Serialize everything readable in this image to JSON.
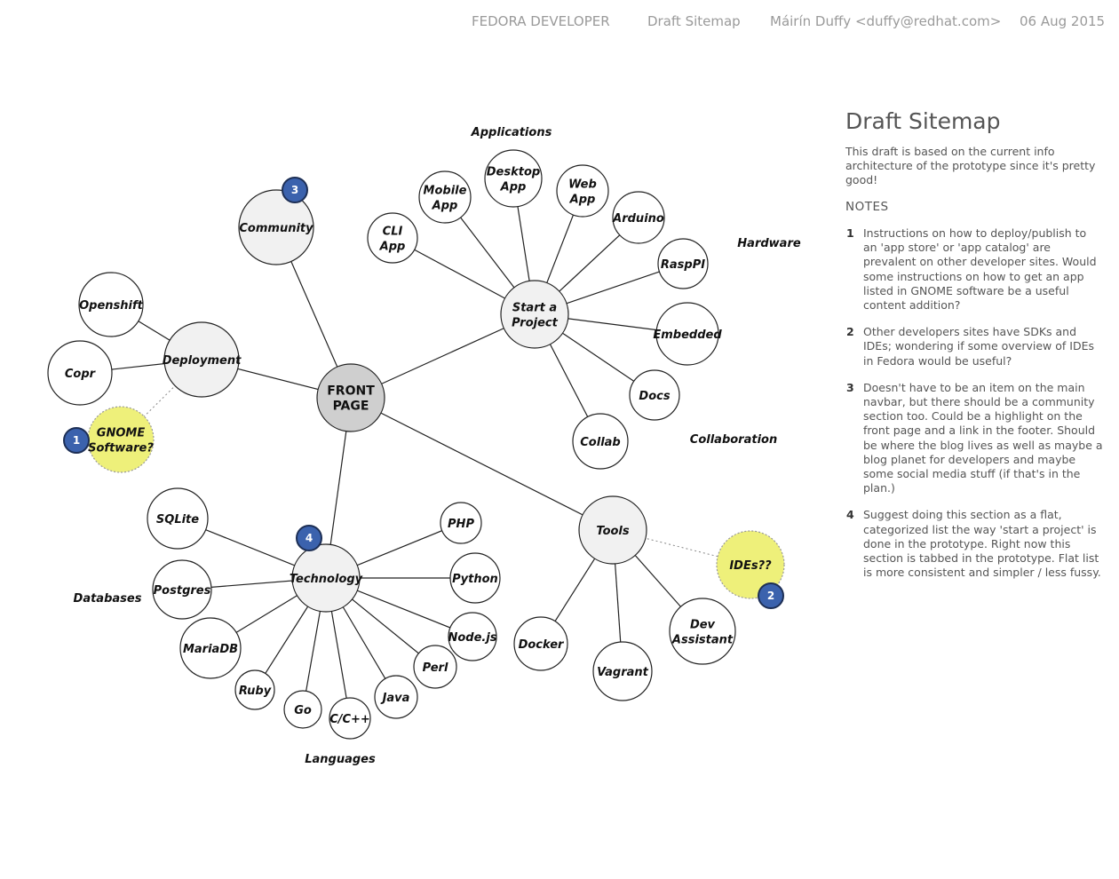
{
  "header": {
    "project": "FEDORA DEVELOPER",
    "doc": "Draft Sitemap",
    "author": "Máirín Duffy <duffy@redhat.com>",
    "date": "06 Aug 2015"
  },
  "sidebar": {
    "title": "Draft Sitemap",
    "intro": "This draft is based on the current info architecture of the prototype since it's pretty good!",
    "notes_heading": "NOTES",
    "notes": [
      {
        "num": "1",
        "text": "Instructions on how to deploy/publish to an 'app store' or 'app catalog' are prevalent on other developer sites. Would some instructions on how to get an app listed in GNOME software be a useful content addition?"
      },
      {
        "num": "2",
        "text": "Other developers sites have SDKs and IDEs; wondering if some overview of IDEs in Fedora would be useful?"
      },
      {
        "num": "3",
        "text": "Doesn't have to be an item on the main navbar, but there should be a community section too. Could be a highlight on the front page and a link in the footer. Should be where the blog lives as well as maybe a blog planet for developers and maybe some social media stuff (if that's in the plan.)"
      },
      {
        "num": "4",
        "text": "Suggest doing this section as a flat, categorized list the way 'start a project' is done in the prototype. Right now this section is tabbed in the prototype. Flat list is more consistent and simpler / less fussy."
      }
    ]
  },
  "diagram": {
    "colors": {
      "root": "#cfcfcf",
      "section": "#f1f1f1",
      "leaf": "#ffffff",
      "suggestion": "#eef07a",
      "badge": "#3b62ad",
      "line": "#222222"
    },
    "nodes": [
      {
        "id": "front",
        "label": "FRONT\nPAGE",
        "kind": "root"
      },
      {
        "id": "community",
        "label": "Community",
        "kind": "section"
      },
      {
        "id": "deployment",
        "label": "Deployment",
        "kind": "section"
      },
      {
        "id": "project",
        "label": "Start a\nProject",
        "kind": "section"
      },
      {
        "id": "technology",
        "label": "Technology",
        "kind": "section"
      },
      {
        "id": "tools",
        "label": "Tools",
        "kind": "section"
      },
      {
        "id": "openshift",
        "label": "Openshift",
        "kind": "leaf"
      },
      {
        "id": "copr",
        "label": "Copr",
        "kind": "leaf"
      },
      {
        "id": "gnome",
        "label": "GNOME\nSoftware?",
        "kind": "suggestion"
      },
      {
        "id": "cli",
        "label": "CLI\nApp",
        "kind": "leaf"
      },
      {
        "id": "mobile",
        "label": "Mobile\nApp",
        "kind": "leaf"
      },
      {
        "id": "desktop",
        "label": "Desktop\nApp",
        "kind": "leaf"
      },
      {
        "id": "web",
        "label": "Web\nApp",
        "kind": "leaf"
      },
      {
        "id": "arduino",
        "label": "Arduino",
        "kind": "leaf"
      },
      {
        "id": "raspi",
        "label": "RaspPI",
        "kind": "leaf"
      },
      {
        "id": "embedded",
        "label": "Embedded",
        "kind": "leaf"
      },
      {
        "id": "docs",
        "label": "Docs",
        "kind": "leaf"
      },
      {
        "id": "collab",
        "label": "Collab",
        "kind": "leaf"
      },
      {
        "id": "sqlite",
        "label": "SQLite",
        "kind": "leaf"
      },
      {
        "id": "postgres",
        "label": "Postgres",
        "kind": "leaf"
      },
      {
        "id": "mariadb",
        "label": "MariaDB",
        "kind": "leaf"
      },
      {
        "id": "ruby",
        "label": "Ruby",
        "kind": "leaf"
      },
      {
        "id": "go",
        "label": "Go",
        "kind": "leaf"
      },
      {
        "id": "cpp",
        "label": "C/C++",
        "kind": "leaf"
      },
      {
        "id": "java",
        "label": "Java",
        "kind": "leaf"
      },
      {
        "id": "perl",
        "label": "Perl",
        "kind": "leaf"
      },
      {
        "id": "nodejs",
        "label": "Node.js",
        "kind": "leaf"
      },
      {
        "id": "python",
        "label": "Python",
        "kind": "leaf"
      },
      {
        "id": "php",
        "label": "PHP",
        "kind": "leaf"
      },
      {
        "id": "docker",
        "label": "Docker",
        "kind": "leaf"
      },
      {
        "id": "vagrant",
        "label": "Vagrant",
        "kind": "leaf"
      },
      {
        "id": "devassist",
        "label": "Dev\nAssistant",
        "kind": "leaf"
      },
      {
        "id": "ides",
        "label": "IDEs??",
        "kind": "suggestion"
      }
    ],
    "edges": [
      {
        "from": "front",
        "to": "community"
      },
      {
        "from": "front",
        "to": "deployment"
      },
      {
        "from": "front",
        "to": "project"
      },
      {
        "from": "front",
        "to": "technology"
      },
      {
        "from": "front",
        "to": "tools"
      },
      {
        "from": "deployment",
        "to": "openshift"
      },
      {
        "from": "deployment",
        "to": "copr"
      },
      {
        "from": "deployment",
        "to": "gnome",
        "dotted": true
      },
      {
        "from": "project",
        "to": "cli"
      },
      {
        "from": "project",
        "to": "mobile"
      },
      {
        "from": "project",
        "to": "desktop"
      },
      {
        "from": "project",
        "to": "web"
      },
      {
        "from": "project",
        "to": "arduino"
      },
      {
        "from": "project",
        "to": "raspi"
      },
      {
        "from": "project",
        "to": "embedded"
      },
      {
        "from": "project",
        "to": "docs"
      },
      {
        "from": "project",
        "to": "collab"
      },
      {
        "from": "technology",
        "to": "sqlite"
      },
      {
        "from": "technology",
        "to": "postgres"
      },
      {
        "from": "technology",
        "to": "mariadb"
      },
      {
        "from": "technology",
        "to": "ruby"
      },
      {
        "from": "technology",
        "to": "go"
      },
      {
        "from": "technology",
        "to": "cpp"
      },
      {
        "from": "technology",
        "to": "java"
      },
      {
        "from": "technology",
        "to": "perl"
      },
      {
        "from": "technology",
        "to": "nodejs"
      },
      {
        "from": "technology",
        "to": "python"
      },
      {
        "from": "technology",
        "to": "php"
      },
      {
        "from": "tools",
        "to": "docker"
      },
      {
        "from": "tools",
        "to": "vagrant"
      },
      {
        "from": "tools",
        "to": "devassist"
      },
      {
        "from": "tools",
        "to": "ides",
        "dotted": true
      }
    ],
    "categories": [
      {
        "id": "applications",
        "label": "Applications"
      },
      {
        "id": "hardware",
        "label": "Hardware"
      },
      {
        "id": "collaboration",
        "label": "Collaboration"
      },
      {
        "id": "databases",
        "label": "Databases"
      },
      {
        "id": "languages",
        "label": "Languages"
      }
    ],
    "badges": [
      {
        "id": "b1",
        "label": "1"
      },
      {
        "id": "b2",
        "label": "2"
      },
      {
        "id": "b3",
        "label": "3"
      },
      {
        "id": "b4",
        "label": "4"
      }
    ]
  }
}
